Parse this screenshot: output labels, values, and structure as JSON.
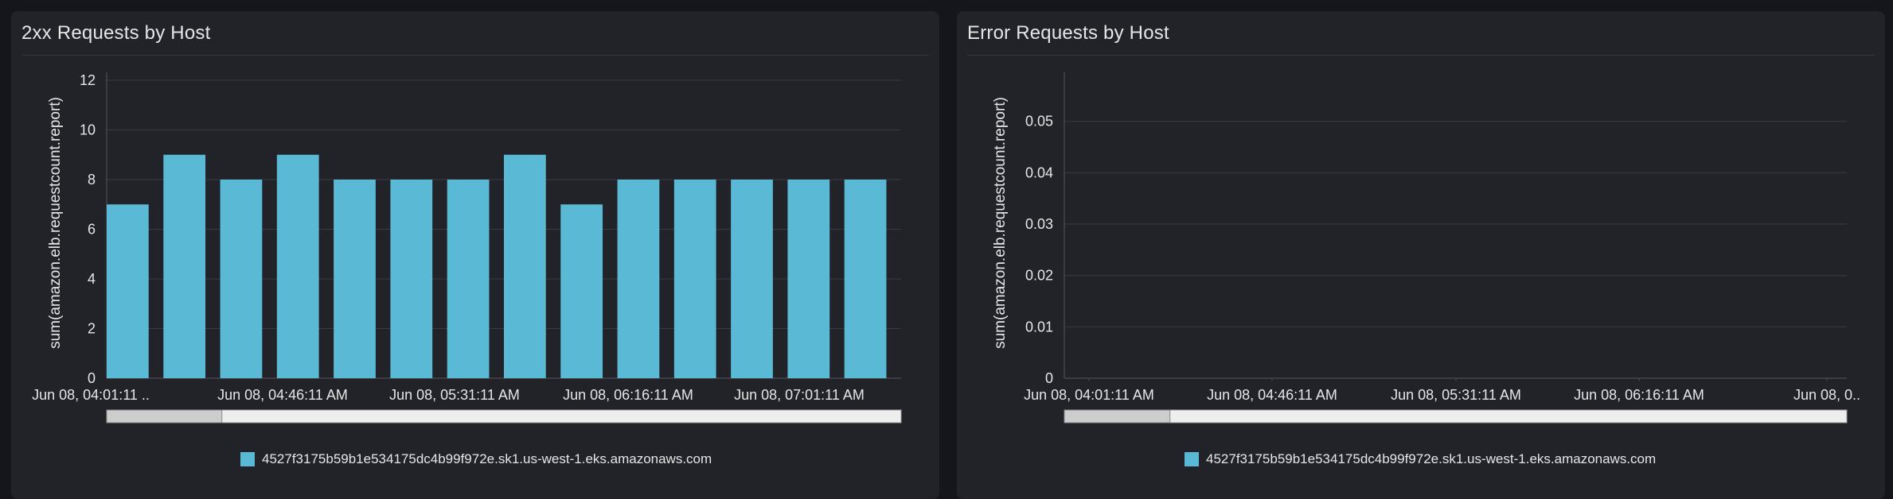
{
  "colors": {
    "series": "#5ab9d4",
    "grid": "#3a3b42",
    "axis": "#55565c",
    "panel": "#222329",
    "background": "#15161b"
  },
  "panels": [
    {
      "title": "2xx Requests by Host",
      "legend_label": "4527f3175b59b1e534175dc4b99f972e.sk1.us-west-1.eks.amazonaws.com"
    },
    {
      "title": "Error Requests by Host",
      "legend_label": "4527f3175b59b1e534175dc4b99f972e.sk1.us-west-1.eks.amazonaws.com"
    }
  ],
  "chart_data": [
    {
      "type": "bar",
      "title": "2xx Requests by Host",
      "ylabel": "sum(amazon.elb.requestcount.report)",
      "xlabel": "",
      "ylim": [
        0,
        12
      ],
      "yticks": [
        0,
        2,
        4,
        6,
        8,
        10,
        12
      ],
      "x_tick_labels": [
        "Jun 08, 04:01:11 ..",
        "Jun 08, 04:46:11 AM",
        "Jun 08, 05:31:11 AM",
        "Jun 08, 06:16:11 AM",
        "Jun 08, 07:01:11 AM"
      ],
      "values": [
        7,
        9,
        8,
        9,
        8,
        8,
        8,
        9,
        7,
        8,
        8,
        8,
        8,
        8
      ],
      "grid": true,
      "legend_position": "bottom",
      "series": [
        {
          "name": "4527f3175b59b1e534175dc4b99f972e.sk1.us-west-1.eks.amazonaws.com",
          "values": [
            7,
            9,
            8,
            9,
            8,
            8,
            8,
            9,
            7,
            8,
            8,
            8,
            8,
            8
          ]
        }
      ]
    },
    {
      "type": "bar",
      "title": "Error Requests by Host",
      "ylabel": "sum(amazon.elb.requestcount.report)",
      "xlabel": "",
      "ylim": [
        0,
        0.058
      ],
      "yticks": [
        0,
        0.01,
        0.02,
        0.03,
        0.04,
        0.05
      ],
      "x_tick_labels": [
        "Jun 08, 04:01:11 AM",
        "Jun 08, 04:46:11 AM",
        "Jun 08, 05:31:11 AM",
        "Jun 08, 06:16:11 AM",
        "Jun 08, 0.."
      ],
      "values": [],
      "grid": true,
      "legend_position": "bottom",
      "series": [
        {
          "name": "4527f3175b59b1e534175dc4b99f972e.sk1.us-west-1.eks.amazonaws.com",
          "values": []
        }
      ]
    }
  ],
  "scrollbars": [
    {
      "thumb_fraction": 0.145
    },
    {
      "thumb_fraction": 0.135
    }
  ]
}
